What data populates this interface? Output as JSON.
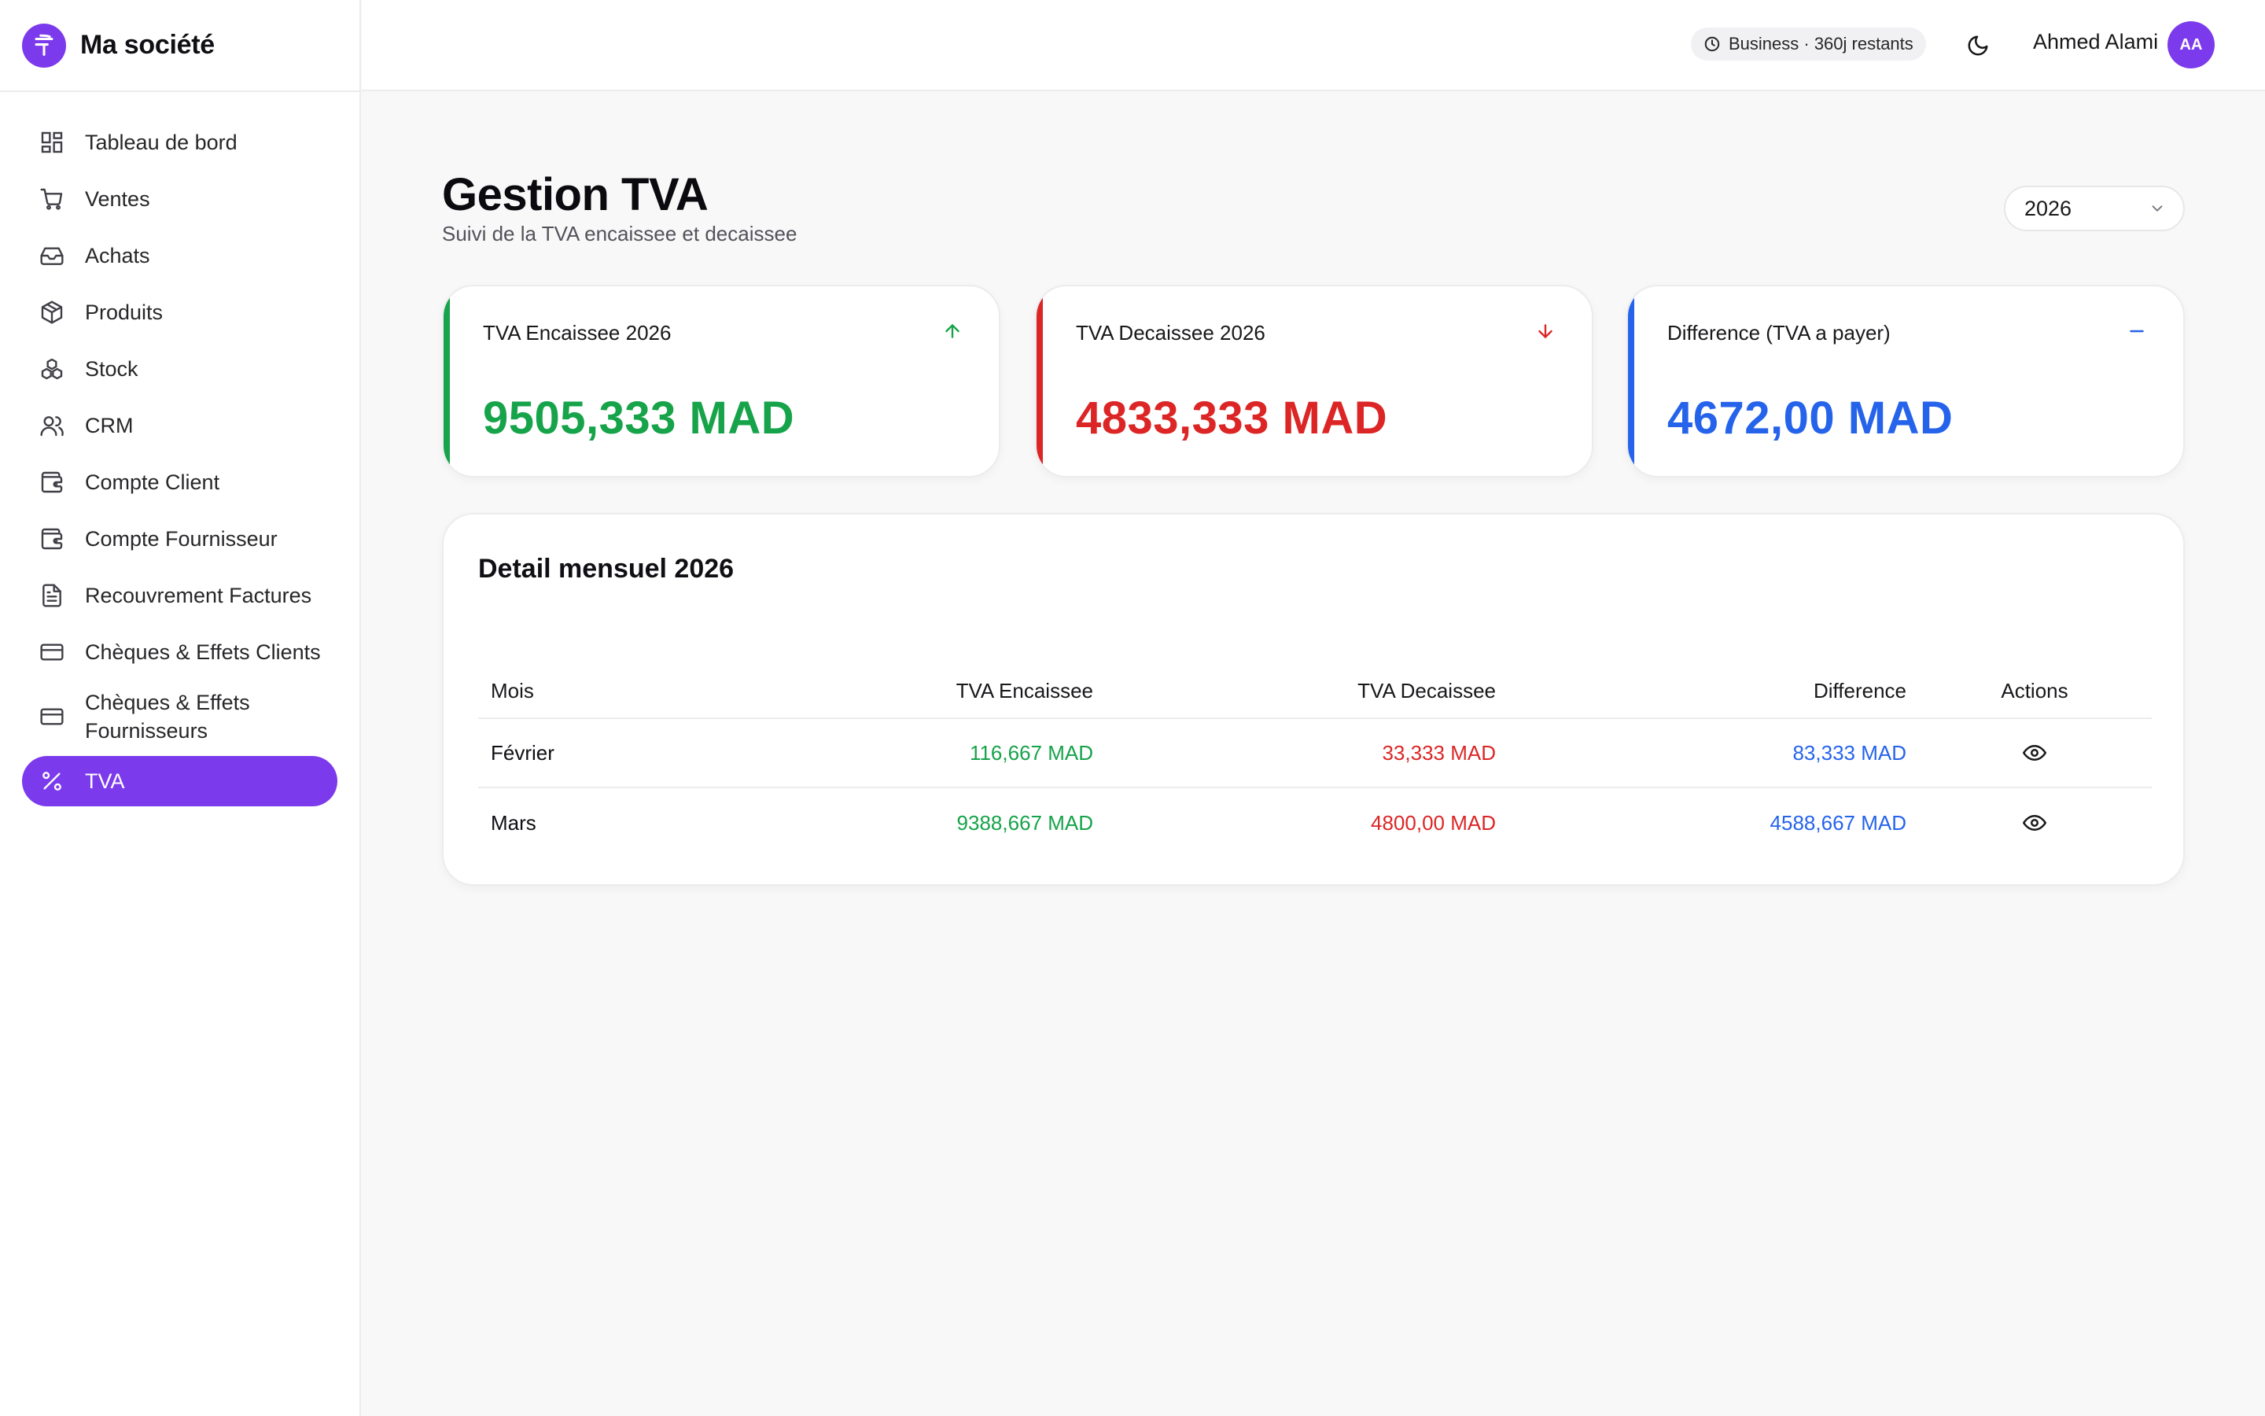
{
  "brand": {
    "name": "Ma société",
    "logo_icon": "brand-logo-icon"
  },
  "sidebar": {
    "items": [
      {
        "label": "Tableau de bord",
        "icon": "dashboard-icon"
      },
      {
        "label": "Ventes",
        "icon": "cart-icon"
      },
      {
        "label": "Achats",
        "icon": "inbox-icon"
      },
      {
        "label": "Produits",
        "icon": "package-icon"
      },
      {
        "label": "Stock",
        "icon": "boxes-icon"
      },
      {
        "label": "CRM",
        "icon": "users-icon"
      },
      {
        "label": "Compte Client",
        "icon": "wallet-icon"
      },
      {
        "label": "Compte Fournisseur",
        "icon": "wallet-icon"
      },
      {
        "label": "Recouvrement Factures",
        "icon": "file-text-icon"
      },
      {
        "label": "Chèques & Effets Clients",
        "icon": "credit-card-icon"
      },
      {
        "label": "Chèques & Effets Fournisseurs",
        "icon": "credit-card-icon"
      },
      {
        "label": "TVA",
        "icon": "percent-icon",
        "active": true
      }
    ]
  },
  "header": {
    "plan_badge": "Business · 360j restants",
    "user_name": "Ahmed Alami",
    "avatar_initials": "AA"
  },
  "page": {
    "title": "Gestion TVA",
    "subtitle": "Suivi de la TVA encaissee et decaissee",
    "year": "2026"
  },
  "stats": [
    {
      "label": "TVA Encaissee 2026",
      "value": "9505,333 MAD",
      "color": "#16a34a",
      "trend_icon": "arrow-up-icon"
    },
    {
      "label": "TVA Decaissee 2026",
      "value": "4833,333 MAD",
      "color": "#dc2626",
      "trend_icon": "arrow-down-icon"
    },
    {
      "label": "Difference (TVA a payer)",
      "value": "4672,00 MAD",
      "color": "#2563eb",
      "trend_icon": "minus-icon"
    }
  ],
  "detail": {
    "title": "Detail mensuel 2026",
    "columns": {
      "mois": "Mois",
      "encaissee": "TVA Encaissee",
      "decaissee": "TVA Decaissee",
      "difference": "Difference",
      "actions": "Actions"
    },
    "rows": [
      {
        "mois": "Février",
        "encaissee": "116,667 MAD",
        "decaissee": "33,333 MAD",
        "difference": "83,333 MAD"
      },
      {
        "mois": "Mars",
        "encaissee": "9388,667 MAD",
        "decaissee": "4800,00 MAD",
        "difference": "4588,667 MAD"
      }
    ]
  },
  "colors": {
    "accent": "#7c3aed",
    "positive": "#16a34a",
    "negative": "#dc2626",
    "neutral": "#2563eb"
  }
}
